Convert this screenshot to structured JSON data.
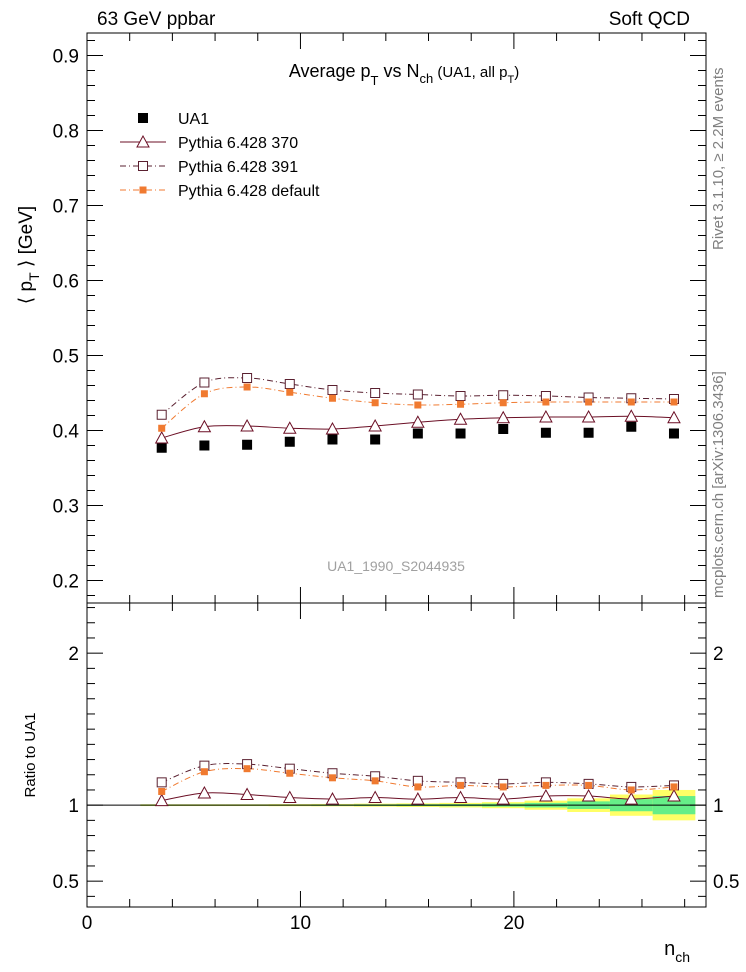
{
  "header": {
    "left": "63 GeV ppbar",
    "right": "Soft QCD"
  },
  "side_labels": {
    "right_top": "Rivet 3.1.10, ≥ 2.2M events",
    "right_bottom": "mcplots.cern.ch [arXiv:1306.3436]"
  },
  "chart_data": [
    {
      "type": "line",
      "title": "Average p_T vs N_ch (UA1, all p_T)",
      "ylabel": "⟨ p_T ⟩ [GeV]",
      "watermark": "UA1_1990_S2044935",
      "xlim": [
        0,
        29
      ],
      "ylim": [
        0.17,
        0.93
      ],
      "x_ticks": [
        0,
        10,
        20
      ],
      "y_ticks": [
        0.2,
        0.3,
        0.4,
        0.5,
        0.6,
        0.7,
        0.8,
        0.9
      ],
      "legend_position": "top-left",
      "x": [
        3.5,
        5.5,
        7.5,
        9.5,
        11.5,
        13.5,
        15.5,
        17.5,
        19.5,
        21.5,
        23.5,
        25.5,
        27.5
      ],
      "series": [
        {
          "name": "UA1",
          "style": "data",
          "marker": "filled-square",
          "color": "#000000",
          "values": [
            0.377,
            0.38,
            0.381,
            0.385,
            0.388,
            0.388,
            0.396,
            0.396,
            0.402,
            0.397,
            0.397,
            0.405,
            0.396
          ]
        },
        {
          "name": "Pythia 6.428 370",
          "style": "solid",
          "marker": "open-triangle",
          "color": "#6b0f25",
          "values": [
            0.39,
            0.405,
            0.406,
            0.403,
            0.402,
            0.406,
            0.411,
            0.415,
            0.417,
            0.418,
            0.418,
            0.419,
            0.417
          ]
        },
        {
          "name": "Pythia 6.428 391",
          "style": "dashdot",
          "marker": "open-square",
          "color": "#5a2030",
          "values": [
            0.421,
            0.464,
            0.47,
            0.462,
            0.454,
            0.45,
            0.448,
            0.446,
            0.447,
            0.446,
            0.444,
            0.443,
            0.442
          ]
        },
        {
          "name": "Pythia 6.428 default",
          "style": "dashdot",
          "marker": "small-filled-square",
          "color": "#f07a30",
          "values": [
            0.403,
            0.449,
            0.458,
            0.451,
            0.443,
            0.437,
            0.434,
            0.435,
            0.437,
            0.438,
            0.438,
            0.438,
            0.438
          ]
        }
      ]
    },
    {
      "type": "line",
      "ylabel": "Ratio to UA1",
      "xlabel": "n_ch",
      "xlim": [
        0,
        29
      ],
      "ylim": [
        0.33,
        2.33
      ],
      "x_ticks": [
        0,
        10,
        20
      ],
      "y_ticks": [
        0.5,
        1,
        2
      ],
      "x": [
        3.5,
        5.5,
        7.5,
        9.5,
        11.5,
        13.5,
        15.5,
        17.5,
        19.5,
        21.5,
        23.5,
        25.5,
        27.5
      ],
      "band_green": [
        0.997,
        0.997,
        0.997,
        0.997,
        0.996,
        0.995,
        0.994,
        0.993,
        0.99,
        0.985,
        0.975,
        0.96,
        0.94
      ],
      "band_yellow": [
        0.994,
        0.994,
        0.994,
        0.993,
        0.992,
        0.99,
        0.988,
        0.985,
        0.98,
        0.97,
        0.955,
        0.93,
        0.9
      ],
      "series": [
        {
          "name": "Pythia 6.428 370",
          "values": [
            1.03,
            1.08,
            1.07,
            1.05,
            1.04,
            1.05,
            1.04,
            1.05,
            1.04,
            1.06,
            1.06,
            1.04,
            1.06
          ]
        },
        {
          "name": "Pythia 6.428 391",
          "values": [
            1.15,
            1.26,
            1.27,
            1.24,
            1.21,
            1.19,
            1.16,
            1.15,
            1.14,
            1.15,
            1.14,
            1.12,
            1.13
          ]
        },
        {
          "name": "Pythia 6.428 default",
          "values": [
            1.09,
            1.22,
            1.24,
            1.21,
            1.18,
            1.16,
            1.12,
            1.13,
            1.12,
            1.13,
            1.13,
            1.1,
            1.12
          ]
        }
      ]
    }
  ]
}
